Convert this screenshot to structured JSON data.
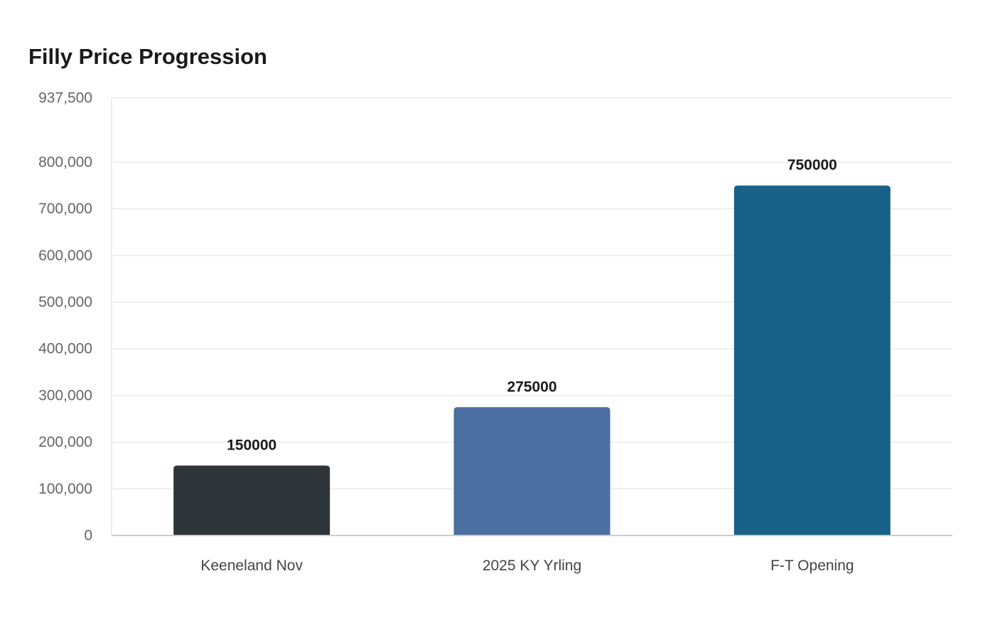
{
  "chart_data": {
    "type": "bar",
    "title": "Filly Price Progression",
    "xlabel": "",
    "ylabel": "",
    "categories": [
      "Keeneland Nov",
      "2025 KY Yrling",
      "F-T Opening"
    ],
    "values": [
      150000,
      275000,
      750000
    ],
    "value_labels": [
      "150000",
      "275000",
      "750000"
    ],
    "ylim": [
      0,
      937500
    ],
    "yticks": [
      0,
      100000,
      200000,
      300000,
      400000,
      500000,
      600000,
      700000,
      800000,
      937500
    ],
    "ytick_labels": [
      "0",
      "100,000",
      "200,000",
      "300,000",
      "400,000",
      "500,000",
      "600,000",
      "700,000",
      "800,000",
      "937,500"
    ],
    "bar_colors": [
      "#2d3538",
      "#4b6ea3",
      "#186188"
    ],
    "grid": true,
    "legend": "none"
  }
}
